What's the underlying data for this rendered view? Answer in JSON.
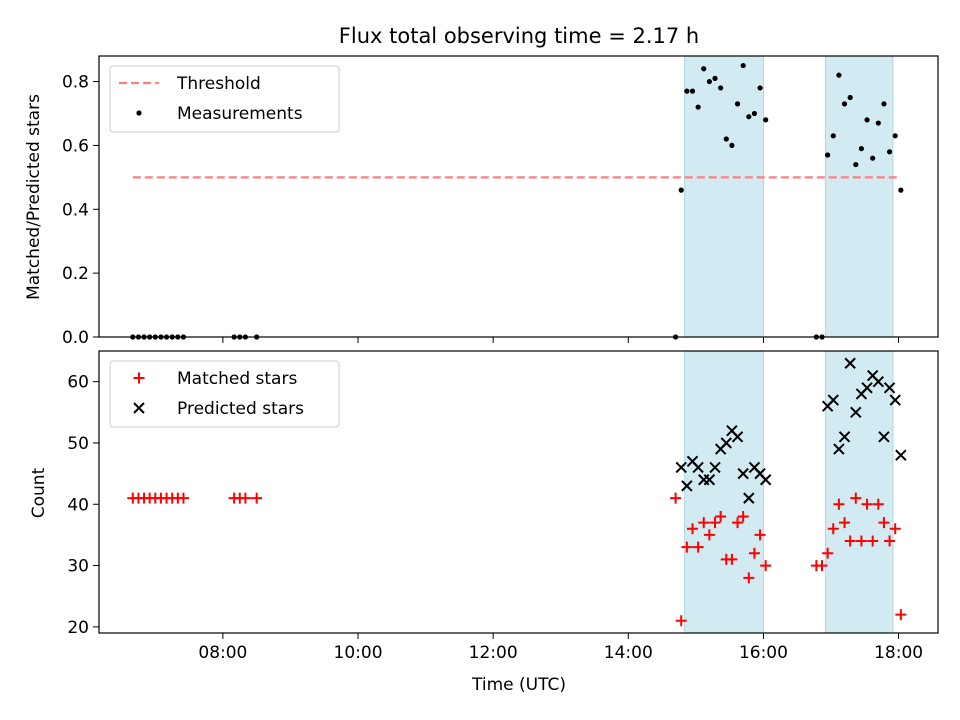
{
  "chart_data": {
    "title": "Flux total observing time = 2.17 h",
    "xlabel": "Time (UTC)",
    "x_unit": "hours UTC",
    "xlim": [
      "06:10",
      "18:35"
    ],
    "x_ticks": [
      "08:00",
      "10:00",
      "12:00",
      "14:00",
      "16:00",
      "18:00"
    ],
    "shaded_intervals": [
      {
        "start": "14:50",
        "end": "16:00",
        "color": "#add8e6"
      },
      {
        "start": "16:55",
        "end": "17:55",
        "color": "#add8e6"
      }
    ],
    "panels": [
      {
        "type": "scatter",
        "ylabel": "Matched/Predicted stars",
        "ylim": [
          0,
          0.88
        ],
        "y_ticks": [
          "0.0",
          "0.2",
          "0.4",
          "0.6",
          "0.8"
        ],
        "legend_position": "upper-left",
        "series": [
          {
            "name": "Threshold",
            "kind": "dashed-line",
            "color": "#ff7f7f",
            "x": [
              "06:40",
              "18:00"
            ],
            "y": [
              0.5,
              0.5
            ]
          },
          {
            "name": "Measurements",
            "kind": "dot",
            "color": "#000000",
            "x": [
              "06:40",
              "06:45",
              "06:50",
              "06:55",
              "07:00",
              "07:05",
              "07:10",
              "07:15",
              "07:20",
              "07:25",
              "08:10",
              "08:15",
              "08:20",
              "08:30",
              "14:42",
              "14:47",
              "14:52",
              "14:57",
              "15:02",
              "15:07",
              "15:12",
              "15:17",
              "15:22",
              "15:27",
              "15:32",
              "15:37",
              "15:42",
              "15:47",
              "15:52",
              "15:57",
              "16:02",
              "16:47",
              "16:52",
              "16:57",
              "17:02",
              "17:07",
              "17:12",
              "17:17",
              "17:22",
              "17:27",
              "17:32",
              "17:37",
              "17:42",
              "17:47",
              "17:52",
              "17:57",
              "18:02"
            ],
            "y": [
              0,
              0,
              0,
              0,
              0,
              0,
              0,
              0,
              0,
              0,
              0,
              0,
              0,
              0,
              0,
              0.46,
              0.77,
              0.77,
              0.72,
              0.84,
              0.8,
              0.81,
              0.78,
              0.62,
              0.6,
              0.73,
              0.85,
              0.69,
              0.7,
              0.78,
              0.68,
              0,
              0,
              0.57,
              0.63,
              0.82,
              0.73,
              0.75,
              0.54,
              0.59,
              0.68,
              0.56,
              0.67,
              0.73,
              0.58,
              0.63,
              0.46
            ]
          }
        ]
      },
      {
        "type": "scatter",
        "ylabel": "Count",
        "ylim": [
          19,
          65
        ],
        "y_ticks": [
          "20",
          "30",
          "40",
          "50",
          "60"
        ],
        "legend_position": "upper-left",
        "series": [
          {
            "name": "Matched stars",
            "marker": "+",
            "color": "#ff0000",
            "x": [
              "06:40",
              "06:45",
              "06:50",
              "06:55",
              "07:00",
              "07:05",
              "07:10",
              "07:15",
              "07:20",
              "07:25",
              "08:10",
              "08:15",
              "08:20",
              "08:30",
              "14:42",
              "14:47",
              "14:52",
              "14:57",
              "15:02",
              "15:07",
              "15:12",
              "15:17",
              "15:22",
              "15:27",
              "15:32",
              "15:37",
              "15:42",
              "15:47",
              "15:52",
              "15:57",
              "16:02",
              "16:47",
              "16:52",
              "16:57",
              "17:02",
              "17:07",
              "17:12",
              "17:17",
              "17:22",
              "17:27",
              "17:32",
              "17:37",
              "17:42",
              "17:47",
              "17:52",
              "17:57",
              "18:02"
            ],
            "y": [
              41,
              41,
              41,
              41,
              41,
              41,
              41,
              41,
              41,
              41,
              41,
              41,
              41,
              41,
              41,
              21,
              33,
              36,
              33,
              37,
              35,
              37,
              38,
              31,
              31,
              37,
              38,
              28,
              32,
              35,
              30,
              30,
              30,
              32,
              36,
              40,
              37,
              34,
              41,
              34,
              40,
              34,
              40,
              37,
              34,
              36,
              22
            ]
          },
          {
            "name": "Predicted stars",
            "marker": "x",
            "color": "#000000",
            "x": [
              "14:47",
              "14:52",
              "14:57",
              "15:02",
              "15:07",
              "15:12",
              "15:17",
              "15:22",
              "15:27",
              "15:32",
              "15:37",
              "15:42",
              "15:47",
              "15:52",
              "15:57",
              "16:02",
              "16:57",
              "17:02",
              "17:07",
              "17:12",
              "17:17",
              "17:22",
              "17:27",
              "17:32",
              "17:37",
              "17:42",
              "17:47",
              "17:52",
              "17:57",
              "18:02"
            ],
            "y": [
              46,
              43,
              47,
              46,
              44,
              44,
              46,
              49,
              50,
              52,
              51,
              45,
              41,
              46,
              45,
              44,
              56,
              57,
              49,
              51,
              63,
              55,
              58,
              59,
              61,
              60,
              51,
              59,
              57,
              48
            ]
          }
        ]
      }
    ]
  }
}
